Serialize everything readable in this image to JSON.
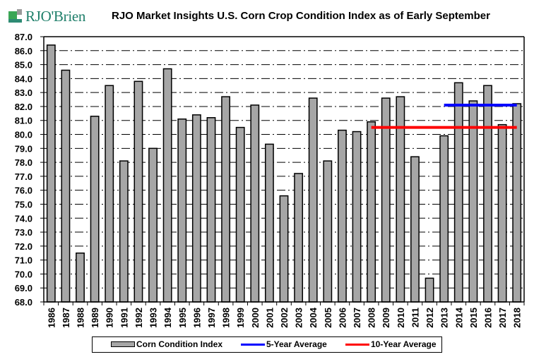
{
  "logo": {
    "text": "RJO'Brien"
  },
  "chart_data": {
    "type": "bar",
    "title": "RJO Market Insights U.S. Corn Crop Condition Index as of Early September",
    "xlabel": "",
    "ylabel": "",
    "ylim": [
      68.0,
      87.0
    ],
    "ytick_step": 1.0,
    "yticks": [
      "68.0",
      "69.0",
      "70.0",
      "71.0",
      "72.0",
      "73.0",
      "74.0",
      "75.0",
      "76.0",
      "77.0",
      "78.0",
      "79.0",
      "80.0",
      "81.0",
      "82.0",
      "83.0",
      "84.0",
      "85.0",
      "86.0",
      "87.0"
    ],
    "grid": true,
    "grid_style": "dash-dot",
    "categories": [
      "1986",
      "1987",
      "1988",
      "1989",
      "1990",
      "1991",
      "1992",
      "1993",
      "1994",
      "1995",
      "1996",
      "1997",
      "1998",
      "1999",
      "2000",
      "2001",
      "2002",
      "2003",
      "2004",
      "2005",
      "2006",
      "2007",
      "2008",
      "2009",
      "2010",
      "2011",
      "2012",
      "2013",
      "2014",
      "2015",
      "2016",
      "2017",
      "2018"
    ],
    "series": [
      {
        "name": "Corn Condition Index",
        "kind": "bar",
        "color": "#a6a6a6",
        "values": [
          86.4,
          84.6,
          71.5,
          81.3,
          83.5,
          78.1,
          83.8,
          79.0,
          84.7,
          81.1,
          81.4,
          81.2,
          82.7,
          80.5,
          82.1,
          79.3,
          75.6,
          77.2,
          82.6,
          78.1,
          80.3,
          80.2,
          80.9,
          82.6,
          82.7,
          78.4,
          69.7,
          79.9,
          83.7,
          82.4,
          83.5,
          80.7,
          82.2
        ]
      },
      {
        "name": "5-Year Average",
        "kind": "line",
        "color": "#0000ff",
        "value": 82.1,
        "from": "2013",
        "to": "2018"
      },
      {
        "name": "10-Year Average",
        "kind": "line",
        "color": "#ff0000",
        "value": 80.5,
        "from": "2008",
        "to": "2018"
      }
    ],
    "legend": {
      "placement": "bottom",
      "items": [
        "Corn Condition Index",
        "5-Year Average",
        "10-Year Average"
      ]
    }
  }
}
